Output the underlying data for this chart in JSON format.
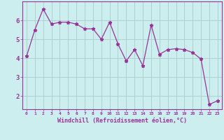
{
  "x": [
    0,
    1,
    2,
    3,
    4,
    5,
    6,
    7,
    8,
    9,
    10,
    11,
    12,
    13,
    14,
    15,
    16,
    17,
    18,
    19,
    20,
    21,
    22,
    23
  ],
  "y": [
    4.1,
    5.5,
    6.6,
    5.8,
    5.9,
    5.9,
    5.8,
    5.55,
    5.55,
    5.0,
    5.9,
    4.75,
    3.85,
    4.45,
    3.6,
    5.75,
    4.2,
    4.45,
    4.5,
    4.45,
    4.3,
    3.95,
    1.55,
    1.75
  ],
  "line_color": "#993399",
  "marker": "*",
  "bg_color": "#cceeee",
  "grid_color": "#aadddd",
  "xlabel": "Windchill (Refroidissement éolien,°C)",
  "xlabel_color": "#993399",
  "tick_color": "#993399",
  "ylim": [
    1.3,
    7.0
  ],
  "yticks": [
    2,
    3,
    4,
    5,
    6
  ],
  "xlim": [
    -0.5,
    23.5
  ]
}
